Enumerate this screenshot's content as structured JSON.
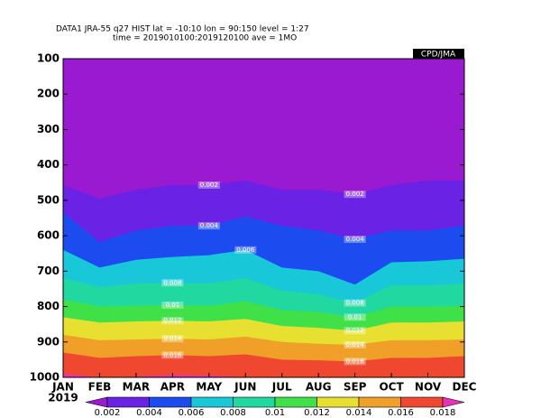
{
  "chart_data": {
    "type": "contour",
    "header": "DATA1  JRA-55  q27  HIST  lat = -10:10  lon = 90:150  level = 1:27",
    "subheader": "time = 2019010100:2019120100  ave = 1MO",
    "credit": "CPD/JMA",
    "x_label": "2019",
    "categories": [
      "JAN",
      "FEB",
      "MAR",
      "APR",
      "MAY",
      "JUN",
      "JUL",
      "AUG",
      "SEP",
      "OCT",
      "NOV",
      "DEC"
    ],
    "ylim": [
      1000,
      100
    ],
    "yticks": [
      100,
      200,
      300,
      400,
      500,
      600,
      700,
      800,
      900,
      1000
    ],
    "levels": [
      0.002,
      0.004,
      0.006,
      0.008,
      0.01,
      0.012,
      0.014,
      0.016,
      0.018
    ],
    "colors": [
      "#9a1ad2",
      "#6a22e4",
      "#1c4cf0",
      "#18c8d8",
      "#20d8a0",
      "#40e048",
      "#e8e030",
      "#f0a028",
      "#f04830",
      "#e830b8"
    ],
    "contour_pressure": [
      [
        457,
        495,
        470,
        457,
        457,
        444,
        470,
        470,
        483,
        457,
        444,
        444
      ],
      [
        534,
        618,
        585,
        572,
        572,
        546,
        572,
        585,
        610,
        585,
        585,
        572
      ],
      [
        640,
        690,
        668,
        660,
        655,
        640,
        690,
        700,
        738,
        675,
        672,
        665
      ],
      [
        720,
        745,
        735,
        733,
        735,
        720,
        755,
        765,
        790,
        740,
        740,
        735
      ],
      [
        780,
        800,
        798,
        796,
        798,
        785,
        810,
        815,
        830,
        800,
        800,
        798
      ],
      [
        830,
        845,
        842,
        840,
        842,
        835,
        855,
        860,
        868,
        845,
        845,
        842
      ],
      [
        880,
        895,
        893,
        891,
        893,
        885,
        900,
        905,
        908,
        895,
        895,
        893
      ],
      [
        930,
        945,
        940,
        937,
        940,
        935,
        950,
        952,
        955,
        945,
        945,
        940
      ],
      [
        990,
        1000,
        998,
        993,
        995,
        1000,
        1000,
        1000,
        1000,
        1000,
        1000,
        1000
      ]
    ]
  }
}
